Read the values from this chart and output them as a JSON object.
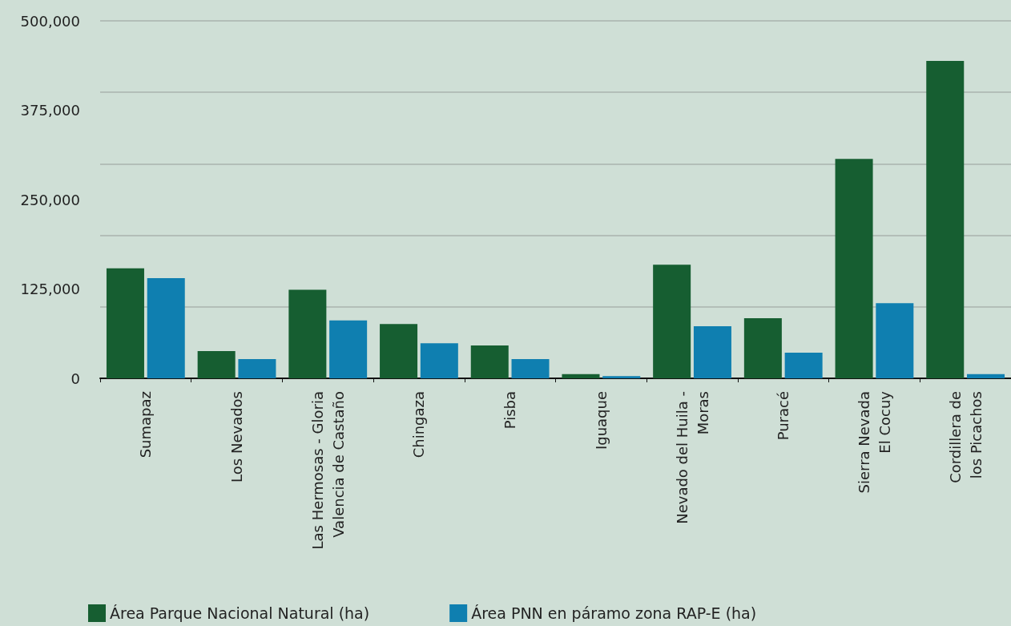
{
  "chart_data": {
    "type": "bar",
    "categories": [
      "Sumapaz",
      "Los Nevados",
      "Las Hermosas - Gloria\nValencia de Castaño",
      "Chingaza",
      "Pisba",
      "Iguaque",
      "Nevado del Huila -\nMoras",
      "Puracé",
      "Sierra Nevada\nEl Cocuy",
      "Cordillera de\nlos Picachos"
    ],
    "series": [
      {
        "name": "Área Parque Nacional Natural (ha)",
        "color": "#165e31",
        "values": [
          154000,
          38000,
          124000,
          76000,
          46000,
          6000,
          159000,
          84000,
          307000,
          444000
        ]
      },
      {
        "name": "Área PNN en páramo zona RAP-E (ha)",
        "color": "#0f7fb0",
        "values": [
          140000,
          27000,
          81000,
          49000,
          27000,
          3000,
          73000,
          36000,
          105000,
          6000
        ]
      }
    ],
    "ylim": [
      0,
      500000
    ],
    "yticks": [
      0,
      {
        "value": 125000,
        "label": "125,000"
      },
      {
        "value": 250000,
        "label": "250,000"
      },
      {
        "value": 375000,
        "label": "375,000"
      },
      {
        "value": 500000,
        "label": "500,000"
      }
    ],
    "grid": "y",
    "legend": "bottom left"
  }
}
